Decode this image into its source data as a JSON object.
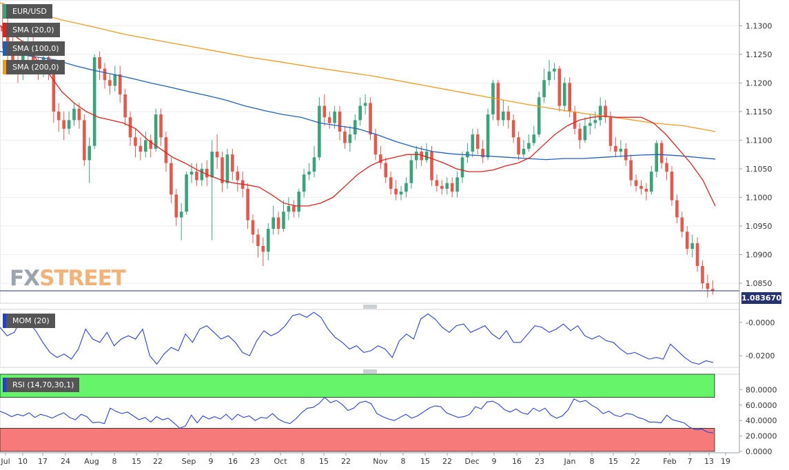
{
  "chart_data": [
    {
      "type": "candlestick",
      "symbol": "EUR/USD",
      "ylim": [
        1.0815,
        1.1345
      ],
      "y_ticks": [
        "1.1300",
        "1.1250",
        "1.1200",
        "1.1150",
        "1.1100",
        "1.1050",
        "1.1000",
        "1.0950",
        "1.0900",
        "1.0850"
      ],
      "current_price": "1.083670",
      "x_ticks": [
        "Jul",
        "10",
        "17",
        "24",
        "Aug",
        "8",
        "15",
        "22",
        "Sep",
        "9",
        "16",
        "23",
        "Oct",
        "8",
        "15",
        "22",
        "Nov",
        "8",
        "15",
        "22",
        "Dec",
        "9",
        "16",
        "23",
        "Jan",
        "8",
        "15",
        "22",
        "Feb",
        "7",
        "13",
        "19"
      ],
      "legend": [
        {
          "label": "EUR/USD",
          "color": "#3ba37a"
        },
        {
          "label": "SMA (20,0)",
          "color": "#e02020"
        },
        {
          "label": "SMA (100,0)",
          "color": "#1f5fbf"
        },
        {
          "label": "SMA (200,0)",
          "color": "#f39a1e"
        }
      ],
      "candles": [
        [
          1.13,
          1.129,
          1.134,
          1.126
        ],
        [
          1.129,
          1.127,
          1.132,
          1.124
        ],
        [
          1.127,
          1.1235,
          1.129,
          1.1215
        ],
        [
          1.1235,
          1.1215,
          1.125,
          1.12
        ],
        [
          1.1215,
          1.1255,
          1.1275,
          1.1205
        ],
        [
          1.1255,
          1.127,
          1.129,
          1.1225
        ],
        [
          1.127,
          1.1235,
          1.128,
          1.1225
        ],
        [
          1.1235,
          1.122,
          1.1245,
          1.1205
        ],
        [
          1.122,
          1.1245,
          1.1265,
          1.121
        ],
        [
          1.1245,
          1.1215,
          1.126,
          1.1205
        ],
        [
          1.1215,
          1.115,
          1.1225,
          1.113
        ],
        [
          1.115,
          1.1135,
          1.1165,
          1.1115
        ],
        [
          1.1135,
          1.112,
          1.115,
          1.11
        ],
        [
          1.112,
          1.1135,
          1.115,
          1.111
        ],
        [
          1.1135,
          1.1155,
          1.1165,
          1.1125
        ],
        [
          1.1155,
          1.1135,
          1.1165,
          1.112
        ],
        [
          1.1135,
          1.1065,
          1.1145,
          1.1055
        ],
        [
          1.1065,
          1.109,
          1.1105,
          1.1025
        ],
        [
          1.109,
          1.1245,
          1.125,
          1.1085
        ],
        [
          1.1245,
          1.1225,
          1.1255,
          1.1205
        ],
        [
          1.1225,
          1.1205,
          1.1235,
          1.119
        ],
        [
          1.1205,
          1.1195,
          1.1215,
          1.118
        ],
        [
          1.1195,
          1.1215,
          1.123,
          1.1185
        ],
        [
          1.1215,
          1.118,
          1.123,
          1.1165
        ],
        [
          1.118,
          1.114,
          1.119,
          1.1125
        ],
        [
          1.114,
          1.1105,
          1.115,
          1.109
        ],
        [
          1.1105,
          1.109,
          1.112,
          1.107
        ],
        [
          1.109,
          1.108,
          1.1105,
          1.1065
        ],
        [
          1.108,
          1.11,
          1.1115,
          1.107
        ],
        [
          1.11,
          1.1085,
          1.111,
          1.107
        ],
        [
          1.1085,
          1.1145,
          1.1155,
          1.108
        ],
        [
          1.1145,
          1.1105,
          1.1155,
          1.109
        ],
        [
          1.1105,
          1.106,
          1.1115,
          1.1045
        ],
        [
          1.106,
          1.1005,
          1.107,
          1.099
        ],
        [
          1.1005,
          1.0965,
          1.1015,
          1.095
        ],
        [
          1.0965,
          1.0975,
          1.099,
          1.0925
        ],
        [
          1.0975,
          1.104,
          1.1045,
          1.097
        ],
        [
          1.104,
          1.1045,
          1.106,
          1.1025
        ],
        [
          1.1045,
          1.103,
          1.106,
          1.102
        ],
        [
          1.103,
          1.105,
          1.106,
          1.102
        ],
        [
          1.105,
          1.1035,
          1.1065,
          1.102
        ],
        [
          1.1035,
          1.108,
          1.11,
          1.0925
        ],
        [
          1.108,
          1.107,
          1.111,
          1.105
        ],
        [
          1.107,
          1.1025,
          1.108,
          1.101
        ],
        [
          1.1025,
          1.1075,
          1.1085,
          1.1015
        ],
        [
          1.1075,
          1.1045,
          1.1085,
          1.103
        ],
        [
          1.1045,
          1.103,
          1.1055,
          1.101
        ],
        [
          1.103,
          1.1015,
          1.1045,
          1.1
        ],
        [
          1.1015,
          1.096,
          1.1025,
          1.0945
        ],
        [
          1.096,
          1.0935,
          1.097,
          1.092
        ],
        [
          1.0935,
          1.0915,
          1.0945,
          1.0895
        ],
        [
          1.0915,
          1.0905,
          1.093,
          1.088
        ],
        [
          1.0905,
          1.0945,
          1.0955,
          1.089
        ],
        [
          1.0945,
          1.0965,
          1.0985,
          1.0935
        ],
        [
          1.0965,
          1.0945,
          1.0975,
          1.0935
        ],
        [
          1.0945,
          1.0975,
          1.0995,
          1.094
        ],
        [
          1.0975,
          1.0985,
          1.1,
          1.096
        ],
        [
          1.0985,
          1.0975,
          1.0995,
          1.0965
        ],
        [
          1.0975,
          1.101,
          1.1015,
          1.0965
        ],
        [
          1.101,
          1.104,
          1.105,
          1.1
        ],
        [
          1.104,
          1.1045,
          1.106,
          1.103
        ],
        [
          1.1045,
          1.107,
          1.109,
          1.1035
        ],
        [
          1.107,
          1.116,
          1.1175,
          1.1065
        ],
        [
          1.116,
          1.114,
          1.118,
          1.1125
        ],
        [
          1.114,
          1.113,
          1.115,
          1.112
        ],
        [
          1.113,
          1.115,
          1.116,
          1.112
        ],
        [
          1.115,
          1.1115,
          1.116,
          1.11
        ],
        [
          1.1115,
          1.1095,
          1.1125,
          1.1085
        ],
        [
          1.1095,
          1.111,
          1.1125,
          1.108
        ],
        [
          1.111,
          1.1135,
          1.1145,
          1.11
        ],
        [
          1.1135,
          1.116,
          1.1175,
          1.1125
        ],
        [
          1.116,
          1.1165,
          1.118,
          1.1145
        ],
        [
          1.1165,
          1.111,
          1.1175,
          1.11
        ],
        [
          1.111,
          1.1075,
          1.112,
          1.1065
        ],
        [
          1.1075,
          1.106,
          1.109,
          1.105
        ],
        [
          1.106,
          1.1035,
          1.107,
          1.1025
        ],
        [
          1.1035,
          1.1015,
          1.1045,
          1.1005
        ],
        [
          1.1015,
          1.1005,
          1.103,
          1.0995
        ],
        [
          1.1005,
          1.101,
          1.102,
          1.0995
        ],
        [
          1.101,
          1.1025,
          1.1035,
          1.1
        ],
        [
          1.1025,
          1.1065,
          1.1075,
          1.1015
        ],
        [
          1.1065,
          1.108,
          1.109,
          1.105
        ],
        [
          1.108,
          1.1065,
          1.109,
          1.1055
        ],
        [
          1.1065,
          1.108,
          1.1095,
          1.106
        ],
        [
          1.108,
          1.103,
          1.109,
          1.102
        ],
        [
          1.103,
          1.102,
          1.104,
          1.101
        ],
        [
          1.102,
          1.1015,
          1.103,
          1.1005
        ],
        [
          1.1015,
          1.1025,
          1.1035,
          1.1005
        ],
        [
          1.1025,
          1.101,
          1.1035,
          1.1
        ],
        [
          1.101,
          1.1035,
          1.1045,
          1.1
        ],
        [
          1.1035,
          1.107,
          1.108,
          1.1025
        ],
        [
          1.107,
          1.108,
          1.1095,
          1.106
        ],
        [
          1.108,
          1.111,
          1.112,
          1.107
        ],
        [
          1.111,
          1.1085,
          1.112,
          1.1075
        ],
        [
          1.1085,
          1.107,
          1.11,
          1.106
        ],
        [
          1.107,
          1.1145,
          1.1155,
          1.1065
        ],
        [
          1.1145,
          1.12,
          1.1205,
          1.1135
        ],
        [
          1.12,
          1.1135,
          1.1205,
          1.1125
        ],
        [
          1.1135,
          1.115,
          1.117,
          1.1125
        ],
        [
          1.115,
          1.1135,
          1.116,
          1.112
        ],
        [
          1.1135,
          1.1105,
          1.1145,
          1.1095
        ],
        [
          1.1105,
          1.1075,
          1.1115,
          1.1065
        ],
        [
          1.1075,
          1.1085,
          1.11,
          1.107
        ],
        [
          1.1085,
          1.1095,
          1.111,
          1.108
        ],
        [
          1.1095,
          1.111,
          1.1125,
          1.109
        ],
        [
          1.111,
          1.1175,
          1.1185,
          1.1105
        ],
        [
          1.1175,
          1.1205,
          1.1225,
          1.1165
        ],
        [
          1.1205,
          1.122,
          1.124,
          1.1195
        ],
        [
          1.122,
          1.1225,
          1.1235,
          1.1205
        ],
        [
          1.1225,
          1.116,
          1.123,
          1.115
        ],
        [
          1.116,
          1.12,
          1.121,
          1.115
        ],
        [
          1.12,
          1.115,
          1.121,
          1.114
        ],
        [
          1.115,
          1.112,
          1.116,
          1.111
        ],
        [
          1.112,
          1.11,
          1.113,
          1.1085
        ],
        [
          1.11,
          1.1125,
          1.114,
          1.1095
        ],
        [
          1.1125,
          1.113,
          1.1145,
          1.111
        ],
        [
          1.113,
          1.1135,
          1.115,
          1.112
        ],
        [
          1.1135,
          1.116,
          1.1175,
          1.1125
        ],
        [
          1.116,
          1.114,
          1.117,
          1.113
        ],
        [
          1.114,
          1.109,
          1.115,
          1.108
        ],
        [
          1.109,
          1.108,
          1.1105,
          1.107
        ],
        [
          1.108,
          1.1085,
          1.11,
          1.107
        ],
        [
          1.1085,
          1.1065,
          1.1095,
          1.1055
        ],
        [
          1.1065,
          1.103,
          1.1075,
          1.102
        ],
        [
          1.103,
          1.102,
          1.104,
          1.101
        ],
        [
          1.102,
          1.1015,
          1.103,
          1.1005
        ],
        [
          1.1015,
          1.101,
          1.1025,
          1.0995
        ],
        [
          1.101,
          1.1045,
          1.1055,
          1.1005
        ],
        [
          1.1045,
          1.1095,
          1.11,
          1.1035
        ],
        [
          1.1095,
          1.106,
          1.11,
          1.105
        ],
        [
          1.106,
          1.1045,
          1.107,
          1.103
        ],
        [
          1.1045,
          1.0995,
          1.1055,
          1.0985
        ],
        [
          1.0995,
          1.0965,
          1.1005,
          1.0955
        ],
        [
          1.0965,
          1.094,
          1.0975,
          1.093
        ],
        [
          1.094,
          1.091,
          1.095,
          1.09
        ],
        [
          1.091,
          1.092,
          1.0935,
          1.0895
        ],
        [
          1.092,
          1.088,
          1.093,
          1.087
        ],
        [
          1.088,
          1.085,
          1.089,
          1.084
        ],
        [
          1.085,
          1.084,
          1.0865,
          1.0825
        ],
        [
          1.084,
          1.0837,
          1.0855,
          1.083
        ]
      ],
      "sma20": [
        1.13,
        1.1285,
        1.127,
        1.124,
        1.1215,
        1.1185,
        1.1165,
        1.115,
        1.114,
        1.1135,
        1.113,
        1.112,
        1.11,
        1.1085,
        1.107,
        1.106,
        1.1048,
        1.1038,
        1.103,
        1.1025,
        1.1022,
        1.1018,
        1.1005,
        1.099,
        1.0985,
        1.0985,
        1.099,
        1.1,
        1.102,
        1.104,
        1.1055,
        1.1065,
        1.107,
        1.1075,
        1.1075,
        1.1068,
        1.106,
        1.105,
        1.1045,
        1.1045,
        1.1048,
        1.1055,
        1.106,
        1.107,
        1.109,
        1.111,
        1.1125,
        1.1135,
        1.114,
        1.1142,
        1.114,
        1.114,
        1.114,
        1.113,
        1.111,
        1.1085,
        1.106,
        1.103,
        1.0985
      ],
      "sma100": [
        1.1255,
        1.125,
        1.1245,
        1.124,
        1.123,
        1.1222,
        1.1215,
        1.1208,
        1.12,
        1.1193,
        1.1185,
        1.1178,
        1.117,
        1.116,
        1.1152,
        1.1145,
        1.114,
        1.113,
        1.1125,
        1.112,
        1.111,
        1.1098,
        1.1088,
        1.108,
        1.1076,
        1.1074,
        1.1072,
        1.107,
        1.1068,
        1.1066,
        1.1068,
        1.1068,
        1.107,
        1.1072,
        1.1074,
        1.1075,
        1.1073,
        1.107,
        1.1067
      ],
      "sma200": [
        1.134,
        1.1325,
        1.131,
        1.1298,
        1.1285,
        1.1275,
        1.1265,
        1.1255,
        1.1245,
        1.1237,
        1.1228,
        1.122,
        1.1212,
        1.1202,
        1.1192,
        1.1182,
        1.1172,
        1.1162,
        1.1153,
        1.1145,
        1.1138,
        1.113,
        1.1125,
        1.1115
      ]
    },
    {
      "type": "line",
      "name": "MOM (20)",
      "ylim": [
        -0.0265,
        0.0065
      ],
      "y_ticks": [
        "-0.0000",
        "-0.0200"
      ],
      "values": [
        -0.003,
        -0.008,
        -0.006,
        0.002,
        0.0,
        -0.005,
        -0.012,
        -0.018,
        -0.021,
        -0.019,
        -0.022,
        -0.016,
        -0.004,
        -0.01,
        -0.012,
        -0.006,
        -0.014,
        -0.01,
        -0.008,
        -0.01,
        -0.004,
        -0.02,
        -0.025,
        -0.019,
        -0.015,
        -0.017,
        -0.007,
        -0.012,
        -0.004,
        -0.002,
        -0.006,
        -0.01,
        -0.008,
        -0.012,
        -0.018,
        -0.02,
        -0.011,
        -0.005,
        -0.008,
        -0.006,
        -0.002,
        0.004,
        0.005,
        0.003,
        0.006,
        0.003,
        -0.004,
        -0.009,
        -0.012,
        -0.016,
        -0.014,
        -0.018,
        -0.017,
        -0.014,
        -0.016,
        -0.021,
        -0.011,
        -0.007,
        -0.01,
        0.002,
        0.005,
        0.002,
        -0.003,
        -0.006,
        -0.002,
        -0.001,
        -0.006,
        -0.004,
        -0.002,
        -0.007,
        -0.01,
        -0.005,
        -0.012,
        -0.012,
        -0.007,
        -0.002,
        -0.003,
        -0.006,
        -0.004,
        -0.001,
        -0.005,
        -0.002,
        -0.008,
        -0.01,
        -0.008,
        -0.011,
        -0.012,
        -0.016,
        -0.019,
        -0.018,
        -0.02,
        -0.022,
        -0.021,
        -0.022,
        -0.013,
        -0.017,
        -0.021,
        -0.024,
        -0.025,
        -0.023,
        -0.024
      ]
    },
    {
      "type": "line",
      "name": "RSI (14,70,30,1)",
      "ylim": [
        0,
        100
      ],
      "y_ticks": [
        "80.0000",
        "60.0000",
        "40.0000",
        "20.0000",
        "0.0000"
      ],
      "overbought": 70,
      "oversold": 30,
      "values": [
        52,
        49,
        45,
        48,
        46,
        50,
        44,
        48,
        46,
        43,
        47,
        50,
        44,
        41,
        48,
        45,
        37,
        38,
        36,
        56,
        52,
        49,
        51,
        46,
        41,
        44,
        38,
        45,
        41,
        43,
        37,
        30,
        33,
        47,
        37,
        46,
        42,
        45,
        42,
        48,
        41,
        48,
        44,
        46,
        40,
        44,
        43,
        49,
        42,
        38,
        36,
        42,
        50,
        56,
        57,
        62,
        70,
        63,
        66,
        61,
        53,
        56,
        63,
        65,
        62,
        49,
        45,
        42,
        40,
        44,
        48,
        43,
        46,
        51,
        56,
        59,
        58,
        50,
        47,
        44,
        45,
        48,
        58,
        55,
        64,
        65,
        61,
        54,
        51,
        55,
        50,
        48,
        56,
        52,
        56,
        47,
        43,
        46,
        54,
        68,
        64,
        66,
        60,
        56,
        49,
        52,
        47,
        45,
        49,
        48,
        44,
        42,
        38,
        38,
        37,
        47,
        41,
        39,
        37,
        31,
        28,
        29,
        25,
        24
      ]
    }
  ]
}
